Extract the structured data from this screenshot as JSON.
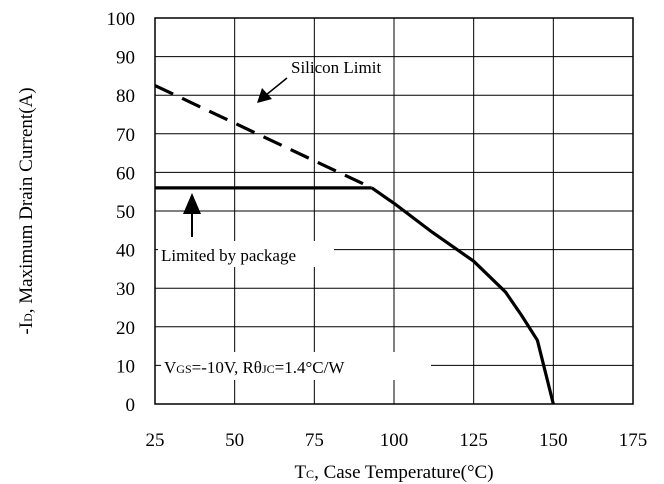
{
  "chart_data": {
    "type": "line",
    "xlabel": {
      "main": "T",
      "sub": "C",
      "rest": ", Case Temperature(°C)"
    },
    "ylabel": {
      "main": "-I",
      "sub": "D",
      "rest": ", Maximum Drain Current(A)"
    },
    "xlim": [
      25,
      175
    ],
    "ylim": [
      0,
      100
    ],
    "x_ticks": [
      25,
      50,
      75,
      100,
      125,
      150,
      175
    ],
    "y_ticks": [
      0,
      10,
      20,
      30,
      40,
      50,
      60,
      70,
      80,
      90,
      100
    ],
    "grid": true,
    "series": [
      {
        "style": "dashed",
        "x": [
          25,
          93
        ],
        "y": [
          82.5,
          56
        ]
      },
      {
        "style": "solid",
        "x": [
          25,
          93
        ],
        "y": [
          56,
          56
        ]
      },
      {
        "style": "solid",
        "x": [
          93,
          100,
          112,
          125,
          135,
          140,
          145,
          150
        ],
        "y": [
          56,
          52,
          44.5,
          37,
          29,
          23,
          16.5,
          0
        ]
      }
    ],
    "annotations": {
      "silicon_limit": "Silicon Limit",
      "package_limit": "Limited by package",
      "conditions": {
        "v": "V",
        "v_sub": "GS",
        "v_rest": "=-10V, Rθ",
        "r_sub": "JC",
        "r_rest": "=1.4°C/W"
      }
    }
  }
}
